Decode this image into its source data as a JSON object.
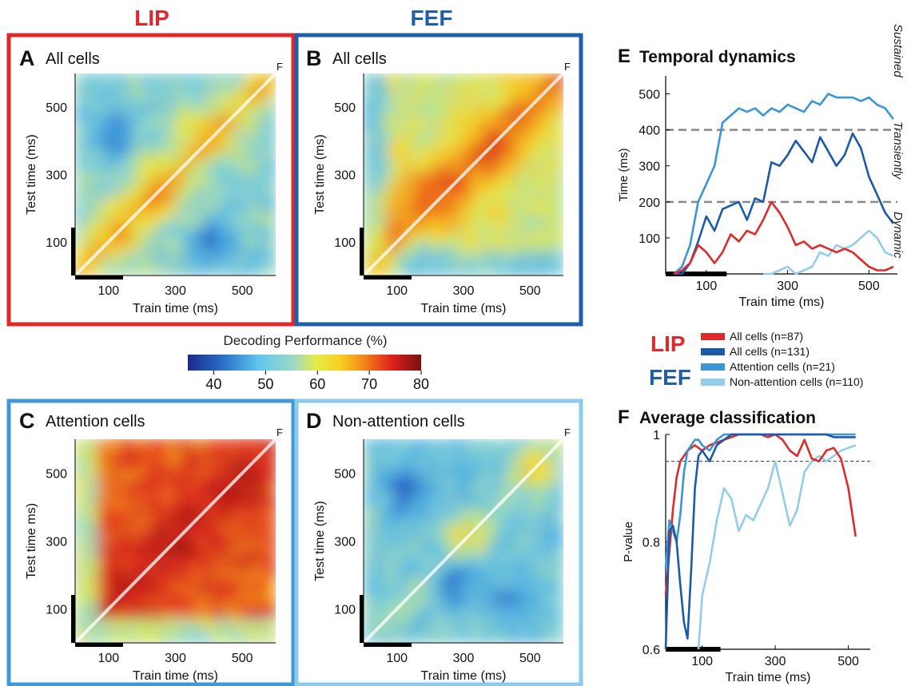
{
  "header": {
    "lip": "LIP",
    "fef": "FEF"
  },
  "colors": {
    "lip": "#e3262a",
    "fef": "#1f5fa9",
    "attention": "#4198d7",
    "non_attention": "#8ccbea",
    "all_fef_line": "#1a5aa8",
    "attention_line": "#3a96d6",
    "nonatt_line": "#93cde9",
    "lip_line": "#df2a2a"
  },
  "heatmap_panels": [
    {
      "letter": "A",
      "title": "All cells",
      "corner": "F",
      "ylabel": "Test time (ms)",
      "xlabel": "Train time (ms)"
    },
    {
      "letter": "B",
      "title": "All cells",
      "corner": "F",
      "ylabel": "Test time (ms)",
      "xlabel": "Train time (ms)"
    },
    {
      "letter": "C",
      "title": "Attention cells",
      "corner": "F",
      "ylabel": "Test time ms)",
      "xlabel": "Train time (ms)"
    },
    {
      "letter": "D",
      "title": "Non-attention cells",
      "corner": "F",
      "ylabel": "Test time (ms)",
      "xlabel": "Train time (ms)"
    }
  ],
  "colorbar": {
    "title": "Decoding Performance (%)",
    "ticks": [
      "40",
      "50",
      "60",
      "70",
      "80"
    ]
  },
  "legend": {
    "lip": "LIP",
    "fef": "FEF",
    "items": [
      {
        "label": "All cells (n=87)",
        "color": "#df2a2a"
      },
      {
        "label": "All cells (n=131)",
        "color": "#1a5aa8"
      },
      {
        "label": "Attention cells (n=21)",
        "color": "#3a96d6"
      },
      {
        "label": "Non-attention cells (n=110)",
        "color": "#93cde9"
      }
    ]
  },
  "chart_data": [
    {
      "type": "heatmap",
      "panel": "A",
      "title": "All cells",
      "xlabel": "Train time (ms)",
      "ylabel": "Test time (ms)",
      "xlim": [
        0,
        600
      ],
      "ylim": [
        0,
        600
      ],
      "xticks": [
        "100",
        "300",
        "500"
      ],
      "yticks": [
        "100",
        "300",
        "500"
      ],
      "colorbar_range": [
        35,
        80
      ],
      "pattern": "diagonal",
      "hot_blobs": [
        {
          "x": 250,
          "y": 250,
          "intensity": 72
        },
        {
          "x": 400,
          "y": 420,
          "intensity": 68
        },
        {
          "x": 130,
          "y": 140,
          "intensity": 68
        }
      ],
      "cold_blobs": [
        {
          "x": 120,
          "y": 420,
          "intensity": 40
        },
        {
          "x": 420,
          "y": 90,
          "intensity": 40
        }
      ]
    },
    {
      "type": "heatmap",
      "panel": "B",
      "title": "All cells",
      "xlabel": "Train time (ms)",
      "ylabel": "Test time (ms)",
      "xlim": [
        0,
        600
      ],
      "ylim": [
        0,
        600
      ],
      "xticks": [
        "100",
        "300",
        "500"
      ],
      "yticks": [
        "100",
        "300",
        "500"
      ],
      "colorbar_range": [
        35,
        80
      ],
      "pattern": "broad",
      "hot_blobs": [
        {
          "x": 250,
          "y": 260,
          "intensity": 74
        },
        {
          "x": 400,
          "y": 400,
          "intensity": 72
        },
        {
          "x": 150,
          "y": 200,
          "intensity": 70
        }
      ],
      "cold_blobs": [
        {
          "x": 180,
          "y": 60,
          "intensity": 48
        }
      ]
    },
    {
      "type": "heatmap",
      "panel": "C",
      "title": "Attention cells",
      "xlabel": "Train time (ms)",
      "ylabel": "Test time ms)",
      "xlim": [
        0,
        600
      ],
      "ylim": [
        0,
        600
      ],
      "xticks": [
        "100",
        "300",
        "500"
      ],
      "yticks": [
        "100",
        "300",
        "500"
      ],
      "colorbar_range": [
        35,
        80
      ],
      "pattern": "square",
      "hot_blobs": [
        {
          "x": 300,
          "y": 300,
          "intensity": 78
        },
        {
          "x": 480,
          "y": 480,
          "intensity": 76
        }
      ],
      "cold_blobs": []
    },
    {
      "type": "heatmap",
      "panel": "D",
      "title": "Non-attention cells",
      "xlabel": "Train time (ms)",
      "ylabel": "Test time (ms)",
      "xlim": [
        0,
        600
      ],
      "ylim": [
        0,
        600
      ],
      "xticks": [
        "100",
        "300",
        "500"
      ],
      "yticks": [
        "100",
        "300",
        "500"
      ],
      "colorbar_range": [
        35,
        80
      ],
      "pattern": "weak",
      "hot_blobs": [
        {
          "x": 520,
          "y": 500,
          "intensity": 68
        },
        {
          "x": 320,
          "y": 310,
          "intensity": 64
        }
      ],
      "cold_blobs": [
        {
          "x": 130,
          "y": 450,
          "intensity": 40
        },
        {
          "x": 290,
          "y": 170,
          "intensity": 40
        },
        {
          "x": 450,
          "y": 120,
          "intensity": 42
        }
      ]
    },
    {
      "type": "line",
      "panel": "E",
      "title": "Temporal dynamics",
      "xlabel": "Train time (ms)",
      "ylabel": "Time (ms)",
      "xlim": [
        0,
        570
      ],
      "ylim": [
        0,
        550
      ],
      "xticks": [
        "100",
        "300",
        "500"
      ],
      "yticks": [
        "100",
        "200",
        "300",
        "400",
        "500"
      ],
      "hlines": [
        200,
        400
      ],
      "regions": [
        "Sustained",
        "Transiently sustained",
        "Dynamic"
      ],
      "x": [
        20,
        40,
        60,
        80,
        100,
        120,
        140,
        160,
        180,
        200,
        220,
        240,
        260,
        280,
        300,
        320,
        340,
        360,
        380,
        400,
        420,
        440,
        460,
        480,
        500,
        520,
        540,
        560
      ],
      "series": [
        {
          "name": "All cells (n=87)",
          "color": "#df2a2a",
          "values": [
            0,
            10,
            30,
            80,
            60,
            30,
            60,
            110,
            90,
            120,
            110,
            150,
            200,
            170,
            130,
            80,
            90,
            70,
            80,
            70,
            60,
            70,
            60,
            40,
            20,
            10,
            10,
            20
          ]
        },
        {
          "name": "All cells (n=131)",
          "color": "#1a5aa8",
          "values": [
            0,
            0,
            30,
            90,
            160,
            120,
            180,
            190,
            200,
            150,
            210,
            200,
            310,
            300,
            330,
            370,
            340,
            310,
            380,
            340,
            300,
            330,
            390,
            350,
            270,
            220,
            170,
            140
          ]
        },
        {
          "name": "Attention cells (n=21)",
          "color": "#3a96d6",
          "values": [
            0,
            20,
            80,
            200,
            250,
            300,
            420,
            440,
            460,
            450,
            460,
            440,
            460,
            450,
            470,
            460,
            450,
            480,
            470,
            500,
            490,
            490,
            490,
            480,
            490,
            470,
            460,
            430
          ]
        },
        {
          "name": "Non-attention cells (n=110)",
          "color": "#93cde9",
          "values": [
            null,
            null,
            null,
            null,
            null,
            null,
            null,
            null,
            null,
            null,
            null,
            0,
            0,
            10,
            20,
            0,
            10,
            20,
            60,
            50,
            80,
            70,
            80,
            100,
            120,
            100,
            60,
            50
          ]
        }
      ]
    },
    {
      "type": "line",
      "panel": "F",
      "title": "Average classification",
      "xlabel": "Train time (ms)",
      "ylabel": "P-value",
      "xlim": [
        0,
        560
      ],
      "ylim": [
        0.6,
        1.0
      ],
      "xticks": [
        "100",
        "300",
        "500"
      ],
      "yticks": [
        "0.6",
        "0.8",
        "1"
      ],
      "hlines": [
        0.95
      ],
      "x": [
        0,
        10,
        20,
        30,
        40,
        50,
        60,
        70,
        80,
        90,
        100,
        120,
        140,
        160,
        180,
        200,
        220,
        240,
        260,
        280,
        300,
        320,
        340,
        360,
        380,
        400,
        420,
        440,
        460,
        480,
        500,
        520
      ],
      "series": [
        {
          "name": "All cells (n=87)",
          "color": "#df2a2a",
          "values": [
            0.7,
            0.78,
            0.86,
            0.92,
            0.95,
            0.96,
            0.97,
            0.975,
            0.98,
            0.975,
            0.97,
            0.98,
            0.985,
            0.99,
            0.995,
            1.0,
            1.0,
            1.0,
            1.0,
            0.995,
            1.0,
            0.99,
            0.97,
            0.96,
            0.99,
            0.955,
            0.95,
            0.97,
            0.975,
            0.955,
            0.9,
            0.81
          ]
        },
        {
          "name": "All cells (n=131)",
          "color": "#1a5aa8",
          "values": [
            0.6,
            0.82,
            0.83,
            0.8,
            0.72,
            0.65,
            0.62,
            0.75,
            0.9,
            0.96,
            0.97,
            0.95,
            0.98,
            0.99,
            1.0,
            1.0,
            1.0,
            1.0,
            1.0,
            1.0,
            1.0,
            1.0,
            1.0,
            1.0,
            1.0,
            1.0,
            1.0,
            1.0,
            0.995,
            0.995,
            0.995,
            0.995
          ]
        },
        {
          "name": "Attention cells (n=21)",
          "color": "#3a96d6",
          "values": [
            0.75,
            0.84,
            0.82,
            0.8,
            0.85,
            0.93,
            0.97,
            0.98,
            0.99,
            0.99,
            0.98,
            0.97,
            0.99,
            1.0,
            1.0,
            1.0,
            1.0,
            1.0,
            1.0,
            1.0,
            1.0,
            1.0,
            1.0,
            1.0,
            1.0,
            1.0,
            1.0,
            1.0,
            1.0,
            1.0,
            1.0,
            1.0
          ]
        },
        {
          "name": "Non-attention cells (n=110)",
          "color": "#93cde9",
          "values": [
            null,
            null,
            null,
            null,
            null,
            null,
            null,
            null,
            null,
            0.6,
            0.7,
            0.76,
            0.84,
            0.9,
            0.88,
            0.82,
            0.85,
            0.84,
            0.87,
            0.9,
            0.95,
            0.89,
            0.83,
            0.86,
            0.93,
            0.95,
            0.96,
            0.95,
            0.96,
            0.97,
            0.975,
            0.98
          ]
        }
      ]
    }
  ]
}
